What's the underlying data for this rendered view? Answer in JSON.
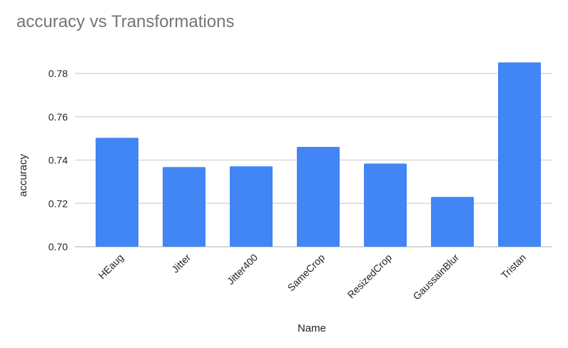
{
  "chart_data": {
    "type": "bar",
    "title": "accuracy vs Transformations",
    "xlabel": "Name",
    "ylabel": "accuracy",
    "categories": [
      "HEaug",
      "Jitter",
      "Jitter400",
      "SameCrop",
      "ResizedCrop",
      "GaussainBlur",
      "Tristan"
    ],
    "values": [
      0.7503,
      0.7368,
      0.7371,
      0.7461,
      0.7384,
      0.723,
      0.7851
    ],
    "ylim": [
      0.7,
      0.78
    ],
    "yticks": [
      "0.70",
      "0.72",
      "0.74",
      "0.76",
      "0.78"
    ],
    "grid": true,
    "bar_color": "#4285f4",
    "grid_color": "#d9d9d9"
  }
}
